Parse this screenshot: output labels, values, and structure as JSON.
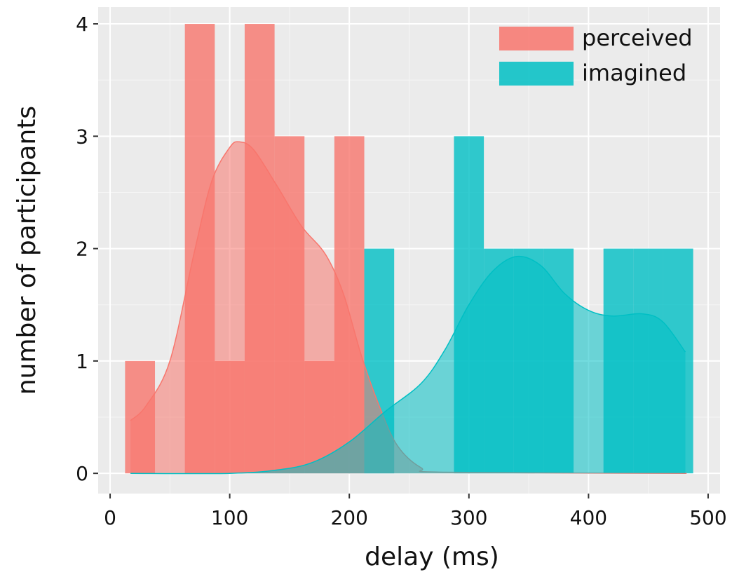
{
  "chart_data": {
    "type": "bar",
    "subtype": "histogram-with-density",
    "xlabel": "delay (ms)",
    "ylabel": "number of participants",
    "xlim": [
      -10,
      510
    ],
    "ylim": [
      -0.18,
      4.15
    ],
    "x_ticks": [
      0,
      100,
      200,
      300,
      400,
      500
    ],
    "y_ticks": [
      0,
      1,
      2,
      3,
      4
    ],
    "bin_width": 25,
    "grid": true,
    "legend_position": "top-right",
    "series": [
      {
        "name": "perceived",
        "color": "#F8766D",
        "bins": [
          {
            "x0": 12.5,
            "x1": 37.5,
            "count": 1
          },
          {
            "x0": 62.5,
            "x1": 87.5,
            "count": 4
          },
          {
            "x0": 87.5,
            "x1": 112.5,
            "count": 1
          },
          {
            "x0": 112.5,
            "x1": 137.5,
            "count": 4
          },
          {
            "x0": 137.5,
            "x1": 162.5,
            "count": 3
          },
          {
            "x0": 162.5,
            "x1": 187.5,
            "count": 1
          },
          {
            "x0": 187.5,
            "x1": 212.5,
            "count": 3
          }
        ],
        "density": [
          [
            17,
            0.47
          ],
          [
            30,
            0.6
          ],
          [
            50,
            1.0
          ],
          [
            70,
            1.95
          ],
          [
            85,
            2.6
          ],
          [
            100,
            2.9
          ],
          [
            108,
            2.95
          ],
          [
            120,
            2.88
          ],
          [
            140,
            2.55
          ],
          [
            160,
            2.2
          ],
          [
            180,
            1.95
          ],
          [
            195,
            1.6
          ],
          [
            210,
            1.05
          ],
          [
            225,
            0.6
          ],
          [
            240,
            0.25
          ],
          [
            260,
            0.05
          ],
          [
            280,
            0.01
          ],
          [
            482,
            0.0
          ]
        ]
      },
      {
        "name": "imagined",
        "color": "#00BFC4",
        "bins": [
          {
            "x0": 212.5,
            "x1": 237.5,
            "count": 2
          },
          {
            "x0": 287.5,
            "x1": 312.5,
            "count": 3
          },
          {
            "x0": 312.5,
            "x1": 337.5,
            "count": 2
          },
          {
            "x0": 337.5,
            "x1": 362.5,
            "count": 2
          },
          {
            "x0": 362.5,
            "x1": 387.5,
            "count": 2
          },
          {
            "x0": 412.5,
            "x1": 437.5,
            "count": 2
          },
          {
            "x0": 437.5,
            "x1": 462.5,
            "count": 2
          },
          {
            "x0": 462.5,
            "x1": 487.5,
            "count": 2
          }
        ],
        "density": [
          [
            17,
            0.0
          ],
          [
            100,
            0.0
          ],
          [
            140,
            0.03
          ],
          [
            170,
            0.1
          ],
          [
            200,
            0.28
          ],
          [
            230,
            0.55
          ],
          [
            260,
            0.8
          ],
          [
            280,
            1.1
          ],
          [
            300,
            1.5
          ],
          [
            320,
            1.8
          ],
          [
            340,
            1.93
          ],
          [
            360,
            1.85
          ],
          [
            380,
            1.6
          ],
          [
            400,
            1.45
          ],
          [
            420,
            1.4
          ],
          [
            445,
            1.42
          ],
          [
            462,
            1.35
          ],
          [
            481,
            1.08
          ]
        ]
      }
    ]
  }
}
